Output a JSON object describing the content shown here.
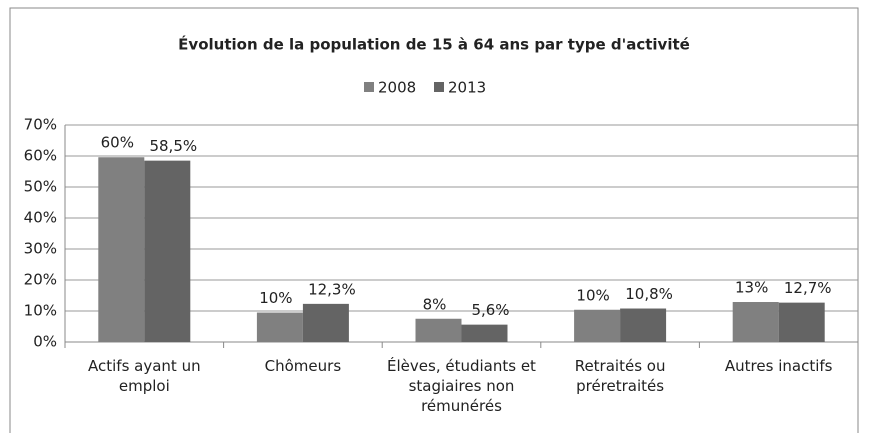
{
  "chart_data": {
    "type": "bar",
    "title": "Évolution de la population de 15 à 64 ans par type d'activité",
    "categories": [
      "Actifs ayant un emploi",
      "Chômeurs",
      "Élèves, étudiants et stagiaires non rémunérés",
      "Retraités ou préretraités",
      "Autres inactifs"
    ],
    "series": [
      {
        "name": "2008",
        "color": "#808080",
        "values": [
          59.6,
          9.5,
          7.5,
          10.4,
          12.9
        ],
        "value_labels": [
          "60%",
          "10%",
          "8%",
          "10%",
          "13%"
        ]
      },
      {
        "name": "2013",
        "color": "#646464",
        "values": [
          58.5,
          12.3,
          5.6,
          10.8,
          12.7
        ],
        "value_labels": [
          "58,5%",
          "12,3%",
          "5,6%",
          "10,8%",
          "12,7%"
        ]
      }
    ],
    "ylim": [
      0,
      70
    ],
    "yticks": [
      {
        "value": 0,
        "label": "0%"
      },
      {
        "value": 10,
        "label": "10%"
      },
      {
        "value": 20,
        "label": "20%"
      },
      {
        "value": 30,
        "label": "30%"
      },
      {
        "value": 40,
        "label": "40%"
      },
      {
        "value": 50,
        "label": "50%"
      },
      {
        "value": 60,
        "label": "60%"
      },
      {
        "value": 70,
        "label": "70%"
      }
    ],
    "grid": true,
    "legend": "top"
  }
}
